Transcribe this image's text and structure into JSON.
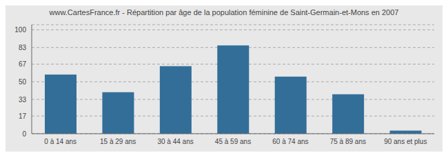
{
  "chart_data": {
    "type": "bar",
    "title": "www.CartesFrance.fr - Répartition par âge de la population féminine de Saint-Germain-et-Mons en 2007",
    "categories": [
      "0 à 14 ans",
      "15 à 29 ans",
      "30 à 44 ans",
      "45 à 59 ans",
      "60 à 74 ans",
      "75 à 89 ans",
      "90 ans et plus"
    ],
    "values": [
      57,
      40,
      65,
      85,
      55,
      38,
      3
    ],
    "color": "#336e99",
    "ylim": [
      0,
      105
    ],
    "yticks": [
      0,
      17,
      33,
      50,
      67,
      83,
      100
    ],
    "grid": true
  }
}
